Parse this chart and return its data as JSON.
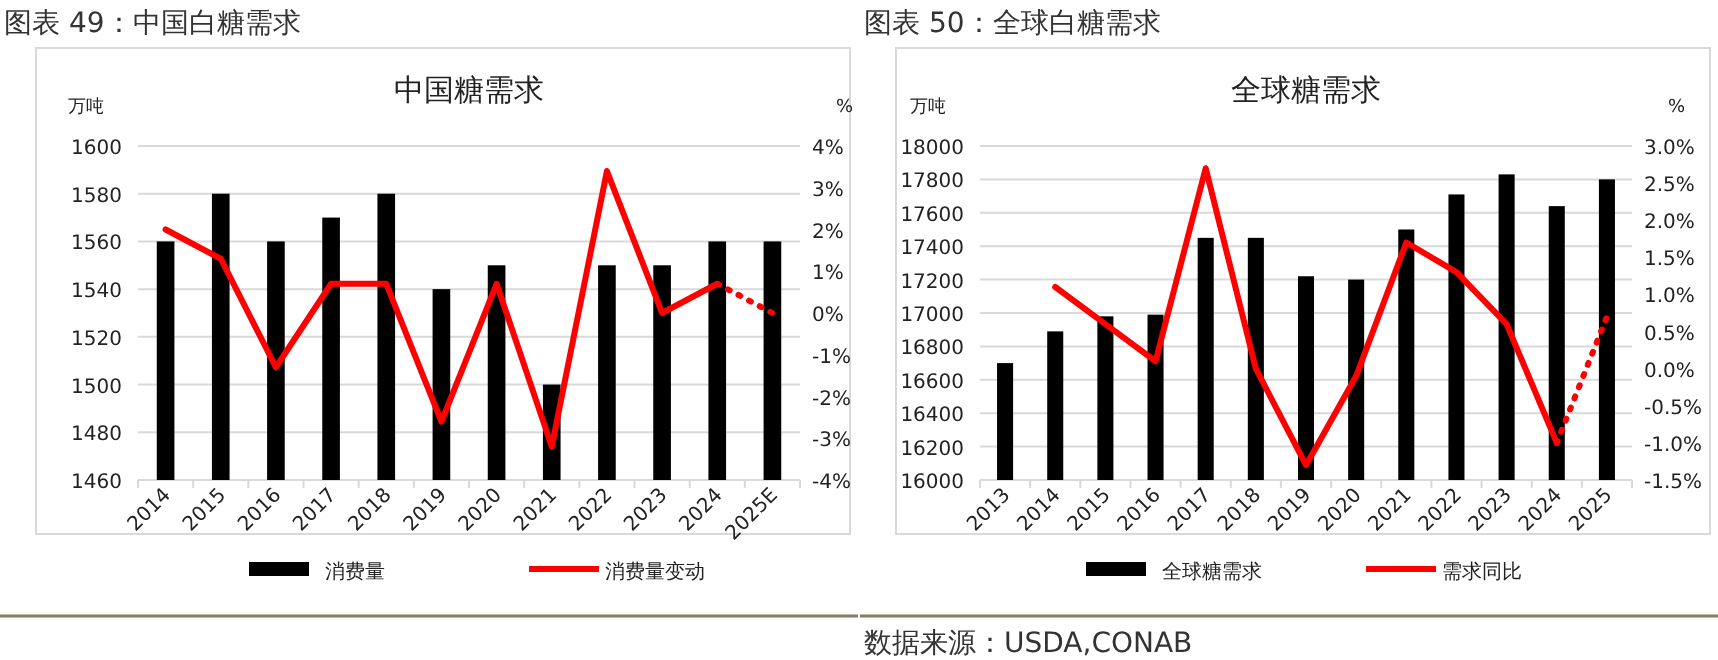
{
  "chart_data": [
    {
      "type": "bar",
      "title": "中国糖需求",
      "ylabel": "万吨",
      "y2label": "%",
      "annotations": [
        "图表 49：中国白糖需求"
      ],
      "categories": [
        "2014",
        "2015",
        "2016",
        "2017",
        "2018",
        "2019",
        "2020",
        "2021",
        "2022",
        "2023",
        "2024",
        "2025E"
      ],
      "series": [
        {
          "name": "消费量",
          "color": "#000000",
          "values": [
            1560,
            1580,
            1560,
            1570,
            1580,
            1540,
            1550,
            1500,
            1550,
            1550,
            1560,
            1560
          ]
        },
        {
          "type": "line",
          "name": "消费量变动",
          "color": "#ff0000",
          "axis": "y2",
          "line_style": "solid",
          "values": [
            2.0,
            1.3,
            -1.3,
            0.7,
            0.7,
            -2.6,
            0.7,
            -3.2,
            3.4,
            0.0,
            0.7,
            null
          ]
        },
        {
          "type": "line",
          "color": "#ff0000",
          "axis": "y2",
          "line_style": "dotted",
          "values": [
            null,
            null,
            null,
            null,
            null,
            null,
            null,
            null,
            null,
            null,
            0.7,
            0.0
          ]
        }
      ],
      "ylim": [
        1460,
        1600
      ],
      "yticks": [
        1460,
        1480,
        1500,
        1520,
        1540,
        1560,
        1580,
        1600
      ],
      "y2lim": [
        -4,
        4
      ],
      "y2ticks": [
        {
          "value": -4,
          "label": "-4%"
        },
        {
          "value": -3,
          "label": "-3%"
        },
        {
          "value": -2,
          "label": "-2%"
        },
        {
          "value": -1,
          "label": "-1%"
        },
        {
          "value": 0,
          "label": "0%"
        },
        {
          "value": 1,
          "label": "1%"
        },
        {
          "value": 2,
          "label": "2%"
        },
        {
          "value": 3,
          "label": "3%"
        },
        {
          "value": 4,
          "label": "4%"
        }
      ],
      "grid": "y",
      "legend": "bottom"
    },
    {
      "type": "bar",
      "title": "全球糖需求",
      "ylabel": "万吨",
      "y2label": "%",
      "annotations": [
        "图表 50：全球白糖需求",
        "数据来源：USDA,CONAB"
      ],
      "categories": [
        "2013",
        "2014",
        "2015",
        "2016",
        "2017",
        "2018",
        "2019",
        "2020",
        "2021",
        "2022",
        "2023",
        "2024",
        "2025"
      ],
      "series": [
        {
          "name": "全球糖需求",
          "color": "#000000",
          "values": [
            16700,
            16890,
            16980,
            16990,
            17450,
            17450,
            17220,
            17200,
            17500,
            17710,
            17830,
            17640,
            17800
          ]
        },
        {
          "type": "line",
          "name": "需求同比",
          "color": "#ff0000",
          "axis": "y2",
          "line_style": "solid",
          "values": [
            null,
            1.1,
            0.6,
            0.1,
            2.7,
            0.0,
            -1.3,
            -0.1,
            1.7,
            1.3,
            0.6,
            -1.0,
            null
          ]
        },
        {
          "type": "line",
          "color": "#ff0000",
          "axis": "y2",
          "line_style": "dotted",
          "values": [
            null,
            null,
            null,
            null,
            null,
            null,
            null,
            null,
            null,
            null,
            null,
            -1.0,
            0.7
          ]
        }
      ],
      "ylim": [
        16000,
        18000
      ],
      "yticks": [
        16000,
        16200,
        16400,
        16600,
        16800,
        17000,
        17200,
        17400,
        17600,
        17800,
        18000
      ],
      "y2lim": [
        -1.5,
        3.0
      ],
      "y2ticks": [
        {
          "value": -1.5,
          "label": "-1.5%"
        },
        {
          "value": -1.0,
          "label": "-1.0%"
        },
        {
          "value": -0.5,
          "label": "-0.5%"
        },
        {
          "value": 0,
          "label": "0.0%"
        },
        {
          "value": 0.5,
          "label": "0.5%"
        },
        {
          "value": 1.0,
          "label": "1.0%"
        },
        {
          "value": 1.5,
          "label": "1.5%"
        },
        {
          "value": 2.0,
          "label": "2.0%"
        },
        {
          "value": 2.5,
          "label": "2.5%"
        },
        {
          "value": 3.0,
          "label": "3.0%"
        }
      ],
      "grid": "y",
      "legend": "bottom"
    }
  ]
}
